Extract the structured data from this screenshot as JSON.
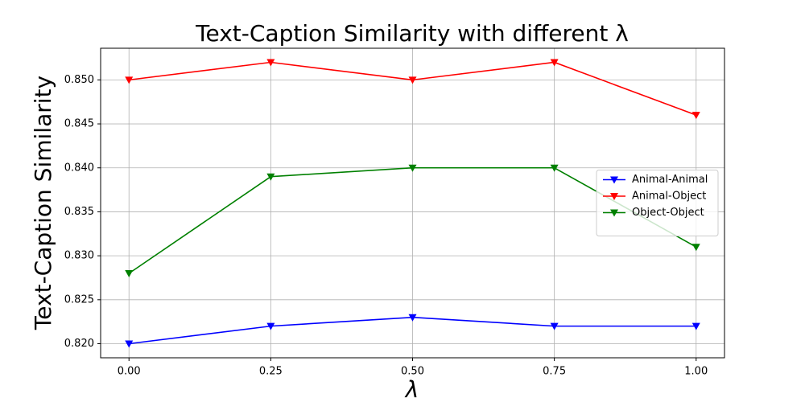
{
  "chart_data": {
    "type": "line",
    "title": "Text-Caption Similarity with different λ",
    "xlabel": "λ",
    "ylabel": "Text-Caption Similarity",
    "x": [
      0,
      0.25,
      0.5,
      0.75,
      1
    ],
    "series": [
      {
        "name": "Animal-Animal",
        "color": "#0000ff",
        "values": [
          0.82,
          0.822,
          0.823,
          0.822,
          0.822
        ]
      },
      {
        "name": "Animal-Object",
        "color": "#ff0000",
        "values": [
          0.85,
          0.852,
          0.85,
          0.852,
          0.846
        ]
      },
      {
        "name": "Object-Object",
        "color": "#008000",
        "values": [
          0.828,
          0.839,
          0.84,
          0.84,
          0.831
        ]
      }
    ],
    "xlim": [
      -0.05,
      1.05
    ],
    "ylim": [
      0.8184,
      0.8536
    ],
    "xticks": [
      {
        "value": 0,
        "label": "0.00"
      },
      {
        "value": 0.25,
        "label": "0.25"
      },
      {
        "value": 0.5,
        "label": "0.50"
      },
      {
        "value": 0.75,
        "label": "0.75"
      },
      {
        "value": 1,
        "label": "1.00"
      }
    ],
    "yticks": [
      {
        "value": 0.82,
        "label": "0.820"
      },
      {
        "value": 0.825,
        "label": "0.825"
      },
      {
        "value": 0.83,
        "label": "0.830"
      },
      {
        "value": 0.835,
        "label": "0.835"
      },
      {
        "value": 0.84,
        "label": "0.840"
      },
      {
        "value": 0.845,
        "label": "0.845"
      },
      {
        "value": 0.85,
        "label": "0.850"
      }
    ],
    "grid": true,
    "legend": "center right"
  }
}
